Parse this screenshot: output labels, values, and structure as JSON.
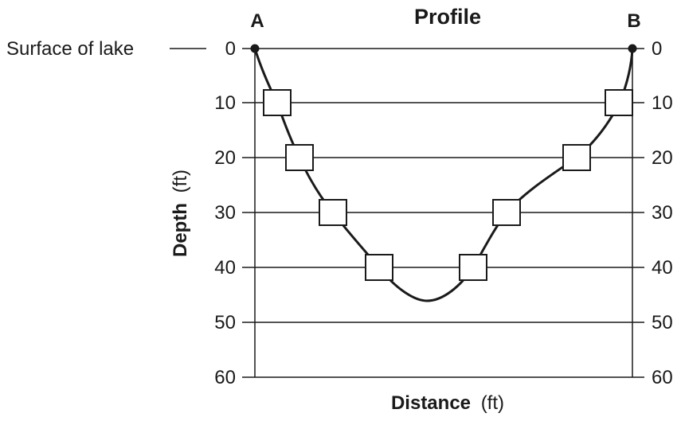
{
  "title": "Profile",
  "point_a_label": "A",
  "point_b_label": "B",
  "surface_label": "Surface of lake",
  "y_axis": {
    "label_bold": "Depth",
    "label_unit": "(ft)",
    "ticks": [
      "0",
      "10",
      "20",
      "30",
      "40",
      "50",
      "60"
    ]
  },
  "x_axis": {
    "label_bold": "Distance",
    "label_unit": "(ft)"
  },
  "colors": {
    "line": "#1a1a1a",
    "marker_fill": "#ffffff",
    "background": "#ffffff"
  }
}
